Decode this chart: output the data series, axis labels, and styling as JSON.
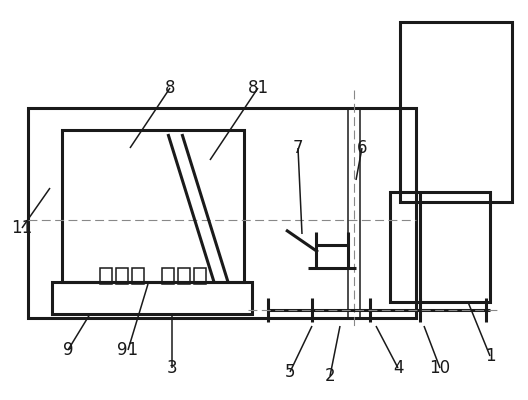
{
  "fig_width": 5.28,
  "fig_height": 4.0,
  "dpi": 100,
  "line_color": "#1a1a1a",
  "bg_color": "#ffffff",
  "lw_thick": 2.2,
  "lw_thin": 1.1,
  "lw_dash": 0.8
}
